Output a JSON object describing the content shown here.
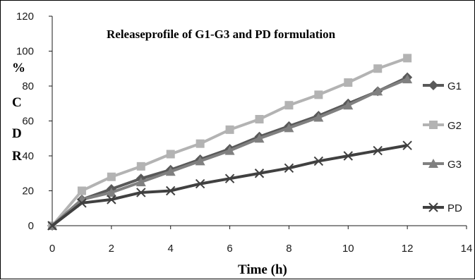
{
  "chart_data": {
    "type": "line",
    "title": "Releaseprofile of G1-G3 and PD formulation",
    "xlabel": "Time (h)",
    "ylabel": [
      "%",
      "C",
      "D",
      "R"
    ],
    "xlim": [
      0,
      14
    ],
    "ylim": [
      0,
      120
    ],
    "x_ticks": [
      0,
      2,
      4,
      6,
      8,
      10,
      12,
      14
    ],
    "y_ticks": [
      0,
      20,
      40,
      60,
      80,
      100,
      120
    ],
    "grid": false,
    "legend_position": "right",
    "x": [
      0,
      1,
      2,
      3,
      4,
      5,
      6,
      7,
      8,
      9,
      10,
      11,
      12
    ],
    "series": [
      {
        "name": "G1",
        "marker": "diamond",
        "color": "#595959",
        "values": [
          0,
          15,
          21,
          27,
          32,
          38,
          44,
          51,
          57,
          63,
          70,
          77,
          85
        ]
      },
      {
        "name": "G2",
        "marker": "square",
        "color": "#b3b3b3",
        "values": [
          0,
          20,
          28,
          34,
          41,
          47,
          55,
          61,
          69,
          75,
          82,
          90,
          96
        ]
      },
      {
        "name": "G3",
        "marker": "triangle",
        "color": "#808080",
        "values": [
          0,
          15,
          19,
          25,
          31,
          37,
          43,
          50,
          56,
          62,
          69,
          77,
          84
        ]
      },
      {
        "name": "PD",
        "marker": "x",
        "color": "#404040",
        "values": [
          0,
          13,
          15,
          19,
          20,
          24,
          27,
          30,
          33,
          37,
          40,
          43,
          46
        ]
      }
    ]
  }
}
